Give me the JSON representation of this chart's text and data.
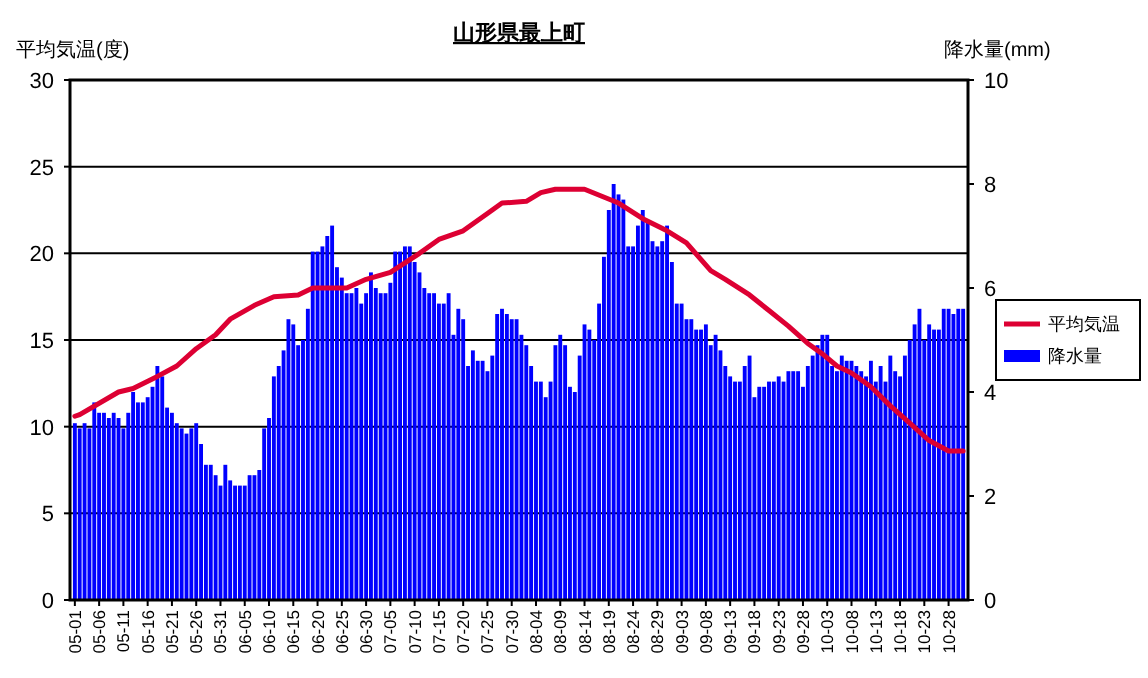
{
  "chart_data": {
    "type": "bar",
    "title": "山形県最上町",
    "ylabel": "平均気温(度)",
    "y2label": "降水量(mm)",
    "x": [
      "--05-01",
      "--05-02",
      "--05-03",
      "--05-04",
      "--05-05",
      "--05-06",
      "--05-07",
      "--05-08",
      "--05-09",
      "--05-10",
      "--05-11",
      "--05-12",
      "--05-13",
      "--05-14",
      "--05-15",
      "--05-16",
      "--05-17",
      "--05-18",
      "--05-19",
      "--05-20",
      "--05-21",
      "--05-22",
      "--05-23",
      "--05-24",
      "--05-25",
      "--05-26",
      "--05-27",
      "--05-28",
      "--05-29",
      "--05-30",
      "--05-31",
      "--06-01",
      "--06-02",
      "--06-03",
      "--06-04",
      "--06-05",
      "--06-06",
      "--06-07",
      "--06-08",
      "--06-09",
      "--06-10",
      "--06-11",
      "--06-12",
      "--06-13",
      "--06-14",
      "--06-15",
      "--06-16",
      "--06-17",
      "--06-18",
      "--06-19",
      "--06-20",
      "--06-21",
      "--06-22",
      "--06-23",
      "--06-24",
      "--06-25",
      "--06-26",
      "--06-27",
      "--06-28",
      "--06-29",
      "--06-30",
      "--07-01",
      "--07-02",
      "--07-03",
      "--07-04",
      "--07-05",
      "--07-06",
      "--07-07",
      "--07-08",
      "--07-09",
      "--07-10",
      "--07-11",
      "--07-12",
      "--07-13",
      "--07-14",
      "--07-15",
      "--07-16",
      "--07-17",
      "--07-18",
      "--07-19",
      "--07-20",
      "--07-21",
      "--07-22",
      "--07-23",
      "--07-24",
      "--07-25",
      "--07-26",
      "--07-27",
      "--07-28",
      "--07-29",
      "--07-30",
      "--07-31",
      "--08-01",
      "--08-02",
      "--08-03",
      "--08-04",
      "--08-05",
      "--08-06",
      "--08-07",
      "--08-08",
      "--08-09",
      "--08-10",
      "--08-11",
      "--08-12",
      "--08-13",
      "--08-14",
      "--08-15",
      "--08-16",
      "--08-17",
      "--08-18",
      "--08-19",
      "--08-20",
      "--08-21",
      "--08-22",
      "--08-23",
      "--08-24",
      "--08-25",
      "--08-26",
      "--08-27",
      "--08-28",
      "--08-29",
      "--08-30",
      "--08-31",
      "--09-01",
      "--09-02",
      "--09-03",
      "--09-04",
      "--09-05",
      "--09-06",
      "--09-07",
      "--09-08",
      "--09-09",
      "--09-10",
      "--09-11",
      "--09-12",
      "--09-13",
      "--09-14",
      "--09-15",
      "--09-16",
      "--09-17",
      "--09-18",
      "--09-19",
      "--09-20",
      "--09-21",
      "--09-22",
      "--09-23",
      "--09-24",
      "--09-25",
      "--09-26",
      "--09-27",
      "--09-28",
      "--09-29",
      "--09-30",
      "--10-01",
      "--10-02",
      "--10-03",
      "--10-04",
      "--10-05",
      "--10-06",
      "--10-07",
      "--10-08",
      "--10-09",
      "--10-10",
      "--10-11",
      "--10-12",
      "--10-13",
      "--10-14",
      "--10-15",
      "--10-16",
      "--10-17",
      "--10-18",
      "--10-19",
      "--10-20",
      "--10-21",
      "--10-22",
      "--10-23",
      "--10-24",
      "--10-25",
      "--10-26",
      "--10-27",
      "--10-28",
      "--10-29",
      "--10-30",
      "--10-31"
    ],
    "series": [
      {
        "name": "平均気温",
        "type": "line",
        "color": "#dd0033",
        "x": [
          "--05-01",
          "--05-02",
          "--05-10",
          "--05-13",
          "--05-18",
          "--05-22",
          "--05-26",
          "--05-30",
          "--06-02",
          "--06-07",
          "--06-11",
          "--06-16",
          "--06-19",
          "--06-26",
          "--06-30",
          "--07-05",
          "--07-11",
          "--07-15",
          "--07-20",
          "--07-25",
          "--07-28",
          "--08-02",
          "--08-05",
          "--08-08",
          "--08-14",
          "--08-21",
          "--08-26",
          "--08-31",
          "--09-04",
          "--09-09",
          "--09-12",
          "--09-17",
          "--09-21",
          "--09-25",
          "--09-29",
          "--10-02",
          "--10-05",
          "--10-08",
          "--10-12",
          "--10-16",
          "--10-20",
          "--10-24",
          "--10-28",
          "--10-31"
        ],
        "values": [
          10.6,
          10.7,
          12.0,
          12.2,
          12.9,
          13.5,
          14.5,
          15.3,
          16.2,
          17.0,
          17.5,
          17.6,
          18.0,
          18.0,
          18.5,
          18.9,
          20.0,
          20.8,
          21.3,
          22.3,
          22.9,
          23.0,
          23.5,
          23.7,
          23.7,
          22.9,
          22.0,
          21.3,
          20.6,
          19.0,
          18.5,
          17.6,
          16.7,
          15.8,
          14.8,
          14.2,
          13.5,
          13.1,
          12.3,
          11.2,
          10.2,
          9.2,
          8.6,
          8.6
        ]
      },
      {
        "name": "降水量",
        "axis": "y2",
        "color": "#0000ff",
        "values": [
          3.4,
          3.3,
          3.4,
          3.3,
          3.8,
          3.6,
          3.6,
          3.5,
          3.6,
          3.5,
          3.3,
          3.6,
          4.0,
          3.8,
          3.8,
          3.9,
          4.1,
          4.5,
          4.3,
          3.7,
          3.6,
          3.4,
          3.3,
          3.2,
          3.3,
          3.4,
          3.0,
          2.6,
          2.6,
          2.4,
          2.2,
          2.6,
          2.3,
          2.2,
          2.2,
          2.2,
          2.4,
          2.4,
          2.5,
          3.3,
          3.5,
          4.3,
          4.5,
          4.8,
          5.4,
          5.3,
          4.9,
          5.0,
          5.6,
          6.7,
          6.7,
          6.8,
          7.0,
          7.2,
          6.4,
          6.2,
          5.9,
          5.9,
          6.0,
          5.7,
          5.9,
          6.3,
          6.0,
          5.9,
          5.9,
          6.1,
          6.7,
          6.7,
          6.8,
          6.8,
          6.5,
          6.3,
          6.0,
          5.9,
          5.9,
          5.7,
          5.7,
          5.9,
          5.1,
          5.6,
          5.4,
          4.5,
          4.8,
          4.6,
          4.6,
          4.4,
          4.7,
          5.5,
          5.6,
          5.5,
          5.4,
          5.4,
          5.1,
          4.9,
          4.5,
          4.2,
          4.2,
          3.9,
          4.2,
          4.9,
          5.1,
          4.9,
          4.1,
          4.0,
          4.7,
          5.3,
          5.2,
          5.0,
          5.7,
          6.6,
          7.5,
          8.0,
          7.8,
          7.7,
          6.8,
          6.8,
          7.2,
          7.5,
          7.3,
          6.9,
          6.8,
          6.9,
          7.2,
          6.5,
          5.7,
          5.7,
          5.4,
          5.4,
          5.2,
          5.2,
          5.3,
          4.9,
          5.1,
          4.8,
          4.5,
          4.3,
          4.2,
          4.2,
          4.5,
          4.7,
          3.9,
          4.1,
          4.1,
          4.2,
          4.2,
          4.3,
          4.2,
          4.4,
          4.4,
          4.4,
          4.1,
          4.5,
          4.7,
          4.9,
          5.1,
          5.1,
          4.5,
          4.4,
          4.7,
          4.6,
          4.6,
          4.5,
          4.4,
          4.3,
          4.6,
          4.2,
          4.5,
          4.2,
          4.7,
          4.4,
          4.3,
          4.7,
          5.0,
          5.3,
          5.6,
          5.0,
          5.3,
          5.2,
          5.2,
          5.6,
          5.6,
          5.5,
          5.6,
          5.6
        ]
      }
    ],
    "xlim": [
      "--04-30",
      "--11-01"
    ],
    "xticks": [
      {
        "value": "--05-01",
        "label": "05-01"
      },
      {
        "value": "--05-06",
        "label": "05-06"
      },
      {
        "value": "--05-11",
        "label": "05-11"
      },
      {
        "value": "--05-16",
        "label": "05-16"
      },
      {
        "value": "--05-21",
        "label": "05-21"
      },
      {
        "value": "--05-26",
        "label": "05-26"
      },
      {
        "value": "--05-31",
        "label": "05-31"
      },
      {
        "value": "--06-05",
        "label": "06-05"
      },
      {
        "value": "--06-10",
        "label": "06-10"
      },
      {
        "value": "--06-15",
        "label": "06-15"
      },
      {
        "value": "--06-20",
        "label": "06-20"
      },
      {
        "value": "--06-25",
        "label": "06-25"
      },
      {
        "value": "--06-30",
        "label": "06-30"
      },
      {
        "value": "--07-05",
        "label": "07-05"
      },
      {
        "value": "--07-10",
        "label": "07-10"
      },
      {
        "value": "--07-15",
        "label": "07-15"
      },
      {
        "value": "--07-20",
        "label": "07-20"
      },
      {
        "value": "--07-25",
        "label": "07-25"
      },
      {
        "value": "--07-30",
        "label": "07-30"
      },
      {
        "value": "--08-04",
        "label": "08-04"
      },
      {
        "value": "--08-09",
        "label": "08-09"
      },
      {
        "value": "--08-14",
        "label": "08-14"
      },
      {
        "value": "--08-19",
        "label": "08-19"
      },
      {
        "value": "--08-24",
        "label": "08-24"
      },
      {
        "value": "--08-29",
        "label": "08-29"
      },
      {
        "value": "--09-03",
        "label": "09-03"
      },
      {
        "value": "--09-08",
        "label": "09-08"
      },
      {
        "value": "--09-13",
        "label": "09-13"
      },
      {
        "value": "--09-18",
        "label": "09-18"
      },
      {
        "value": "--09-23",
        "label": "09-23"
      },
      {
        "value": "--09-28",
        "label": "09-28"
      },
      {
        "value": "--10-03",
        "label": "10-03"
      },
      {
        "value": "--10-08",
        "label": "10-08"
      },
      {
        "value": "--10-13",
        "label": "10-13"
      },
      {
        "value": "--10-18",
        "label": "10-18"
      },
      {
        "value": "--10-23",
        "label": "10-23"
      },
      {
        "value": "--10-28",
        "label": "10-28"
      }
    ],
    "ylim": [
      0,
      30
    ],
    "yticks": [
      0,
      5,
      10,
      15,
      20,
      25,
      30
    ],
    "y2lim": [
      0,
      10
    ],
    "y2ticks": [
      0,
      2,
      4,
      6,
      8,
      10
    ],
    "grid": "y",
    "legend": "right"
  }
}
